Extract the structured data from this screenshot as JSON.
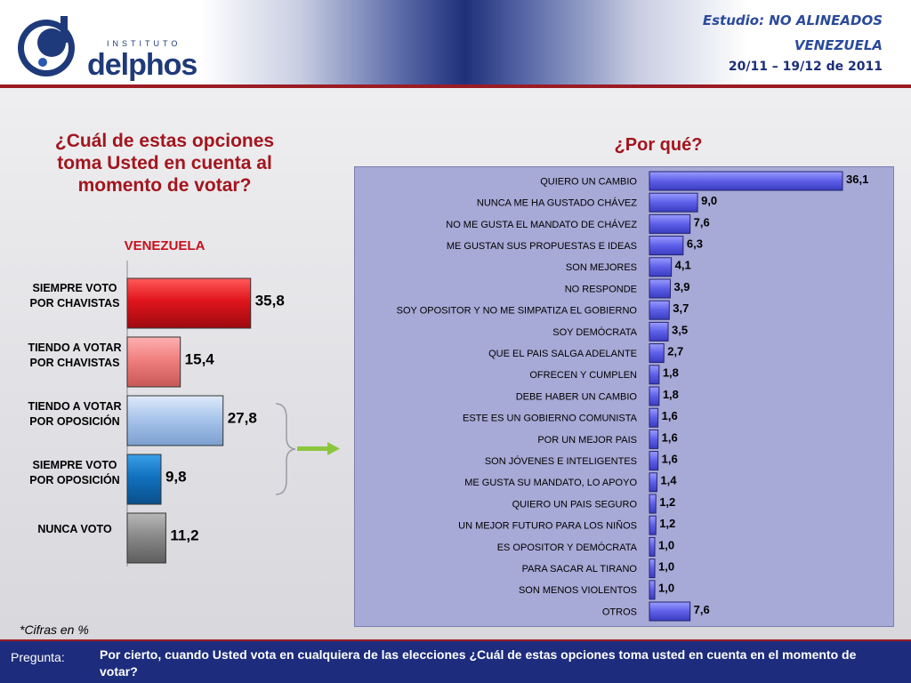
{
  "header": {
    "brand_small": "INSTITUTO",
    "brand": "delphos",
    "study_line": "Estudio: NO ALINEADOS",
    "country": "VENEZUELA",
    "dates": "20/11 – 19/12 de 2011"
  },
  "colors": {
    "header_dark": "#1f2f7a",
    "accent_red": "#9b1c24",
    "panel_bg": "#a7a9d6",
    "right_bar": "#5d5fe8",
    "arrow_green": "#8cc63f"
  },
  "chart_data": [
    {
      "type": "bar",
      "orientation": "horizontal",
      "title": "¿Cuál de estas opciones toma Usted en cuenta al momento de votar?",
      "subtitle": "VENEZUELA",
      "categories": [
        "SIEMPRE VOTO POR CHAVISTAS",
        "TIENDO A VOTAR POR CHAVISTAS",
        "TIENDO A VOTAR POR OPOSICIÓN",
        "SIEMPRE VOTO POR OPOSICIÓN",
        "NUNCA VOTO"
      ],
      "values": [
        35.8,
        15.4,
        27.8,
        9.8,
        11.2
      ],
      "value_labels": [
        "35,8",
        "15,4",
        "27,8",
        "9,8",
        "11,2"
      ],
      "bar_colors": [
        "#e0141c",
        "#f08080",
        "#a9c6ec",
        "#1171c0",
        "#8a8a8a"
      ],
      "xlim": [
        0,
        40
      ],
      "grid": false,
      "legend": "none"
    },
    {
      "type": "bar",
      "orientation": "horizontal",
      "title": "¿Por qué?",
      "categories": [
        "QUIERO UN CAMBIO",
        "NUNCA ME HA GUSTADO CHÁVEZ",
        "NO ME GUSTA EL MANDATO DE CHÁVEZ",
        "ME GUSTAN SUS PROPUESTAS E IDEAS",
        "SON MEJORES",
        "NO RESPONDE",
        "SOY OPOSITOR Y NO ME SIMPATIZA EL GOBIERNO",
        "SOY DEMÓCRATA",
        "QUE EL PAIS SALGA ADELANTE",
        "OFRECEN Y CUMPLEN",
        "DEBE HABER UN CAMBIO",
        "ESTE ES UN GOBIERNO COMUNISTA",
        "POR UN MEJOR PAIS",
        "SON JÓVENES E INTELIGENTES",
        "ME GUSTA SU MANDATO, LO APOYO",
        "QUIERO UN PAIS SEGURO",
        "UN MEJOR FUTURO PARA LOS NIÑOS",
        "ES OPOSITOR Y DEMÓCRATA",
        "PARA SACAR AL TIRANO",
        "SON MENOS VIOLENTOS",
        "OTROS"
      ],
      "values": [
        36.1,
        9.0,
        7.6,
        6.3,
        4.1,
        3.9,
        3.7,
        3.5,
        2.7,
        1.8,
        1.8,
        1.6,
        1.6,
        1.6,
        1.4,
        1.2,
        1.2,
        1.0,
        1.0,
        1.0,
        7.6
      ],
      "value_labels": [
        "36,1",
        "9,0",
        "7,6",
        "6,3",
        "4,1",
        "3,9",
        "3,7",
        "3,5",
        "2,7",
        "1,8",
        "1,8",
        "1,6",
        "1,6",
        "1,6",
        "1,4",
        "1,2",
        "1,2",
        "1,0",
        "1,0",
        "1,0",
        "7,6"
      ],
      "xlim": [
        0,
        40
      ],
      "grid": false,
      "legend": "none"
    }
  ],
  "note": "*Cifras en %",
  "footer": {
    "label": "Pregunta:",
    "question": "Por cierto, cuando Usted vota en cualquiera de las elecciones ¿Cuál de estas opciones toma usted en cuenta en el momento de votar?"
  }
}
